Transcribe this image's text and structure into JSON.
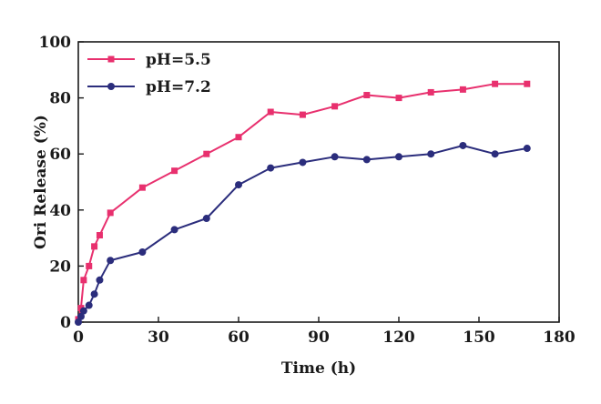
{
  "chart_data": {
    "type": "line",
    "xlabel": "Time (h)",
    "ylabel": "Ori Release (%)",
    "xlim": [
      0,
      180
    ],
    "ylim": [
      0,
      100
    ],
    "xticks": [
      0,
      30,
      60,
      90,
      120,
      150,
      180
    ],
    "yticks": [
      0,
      20,
      40,
      60,
      80,
      100
    ],
    "grid": false,
    "legend_position": "top-left",
    "series": [
      {
        "name": "pH=5.5",
        "color": "#e8306e",
        "marker": "square",
        "x": [
          0,
          1,
          2,
          4,
          6,
          8,
          12,
          24,
          36,
          48,
          60,
          72,
          84,
          96,
          108,
          120,
          132,
          144,
          156,
          168
        ],
        "y": [
          1,
          5,
          15,
          20,
          27,
          31,
          39,
          48,
          54,
          60,
          66,
          75,
          74,
          77,
          81,
          80,
          82,
          83,
          85,
          85
        ]
      },
      {
        "name": "pH=7.2",
        "color": "#2b2d7c",
        "marker": "circle",
        "x": [
          0,
          1,
          2,
          4,
          6,
          8,
          12,
          24,
          36,
          48,
          60,
          72,
          84,
          96,
          108,
          120,
          132,
          144,
          156,
          168
        ],
        "y": [
          0,
          2,
          4,
          6,
          10,
          15,
          22,
          25,
          33,
          37,
          49,
          55,
          57,
          59,
          58,
          59,
          60,
          63,
          60,
          62
        ]
      }
    ]
  }
}
